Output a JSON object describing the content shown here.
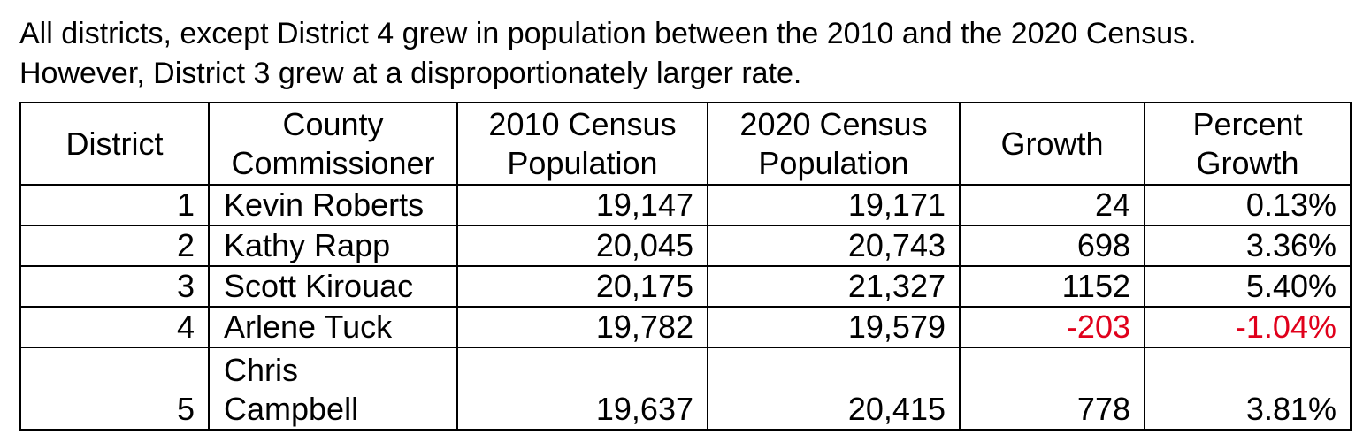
{
  "intro": {
    "line1": "All districts, except District 4 grew in population between the 2010 and the 2020 Census.",
    "line2": "However, District 3 grew at a disproportionately larger rate."
  },
  "table": {
    "headers": {
      "district": "District",
      "commissioner_1": "County",
      "commissioner_2": "Commissioner",
      "pop2010_1": "2010 Census",
      "pop2010_2": "Population",
      "pop2020_1": "2020 Census",
      "pop2020_2": "Population",
      "growth": "Growth",
      "pct_1": "Percent",
      "pct_2": "Growth"
    },
    "rows": [
      {
        "district": "1",
        "commissioner": "Kevin Roberts",
        "pop2010": "19,147",
        "pop2020": "19,171",
        "growth": "24",
        "pct": "0.13%"
      },
      {
        "district": "2",
        "commissioner": "Kathy Rapp",
        "pop2010": "20,045",
        "pop2020": "20,743",
        "growth": "698",
        "pct": "3.36%"
      },
      {
        "district": "3",
        "commissioner": "Scott Kirouac",
        "pop2010": "20,175",
        "pop2020": "21,327",
        "growth": "1152",
        "pct": "5.40%"
      },
      {
        "district": "4",
        "commissioner": "Arlene Tuck",
        "pop2010": "19,782",
        "pop2020": "19,579",
        "growth": "-203",
        "pct": "-1.04%"
      },
      {
        "district": "5",
        "commissioner_1": "Chris",
        "commissioner_2": "Campbell",
        "pop2010": "19,637",
        "pop2020": "20,415",
        "growth": "778",
        "pct": "3.81%"
      }
    ]
  },
  "colors": {
    "negative": "#e0001b",
    "text": "#000000",
    "border": "#000000"
  }
}
